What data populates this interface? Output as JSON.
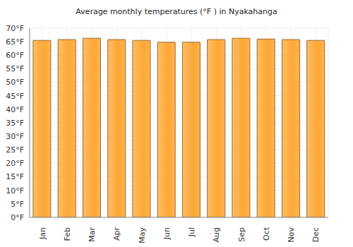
{
  "chart_data": {
    "type": "bar",
    "title": "Average monthly temperatures (°F ) in Nyakahanga",
    "categories": [
      "Jan",
      "Feb",
      "Mar",
      "Apr",
      "May",
      "Jun",
      "Jul",
      "Aug",
      "Sep",
      "Oct",
      "Nov",
      "Dec"
    ],
    "values": [
      65.5,
      65.8,
      66.3,
      65.8,
      65.5,
      64.8,
      64.8,
      65.8,
      66.3,
      66.0,
      65.8,
      65.5
    ],
    "color": "#ffa733",
    "ylim": [
      0,
      70
    ],
    "yticks": [
      {
        "value": 0,
        "label": "0°F"
      },
      {
        "value": 5,
        "label": "5°F"
      },
      {
        "value": 10,
        "label": "10°F"
      },
      {
        "value": 15,
        "label": "15°F"
      },
      {
        "value": 20,
        "label": "20°F"
      },
      {
        "value": 25,
        "label": "25°F"
      },
      {
        "value": 30,
        "label": "30°F"
      },
      {
        "value": 35,
        "label": "35°F"
      },
      {
        "value": 40,
        "label": "40°F"
      },
      {
        "value": 45,
        "label": "45°F"
      },
      {
        "value": 50,
        "label": "50°F"
      },
      {
        "value": 55,
        "label": "55°F"
      },
      {
        "value": 60,
        "label": "60°F"
      },
      {
        "value": 65,
        "label": "65°F"
      },
      {
        "value": 70,
        "label": "70°F"
      }
    ],
    "grid": true
  }
}
